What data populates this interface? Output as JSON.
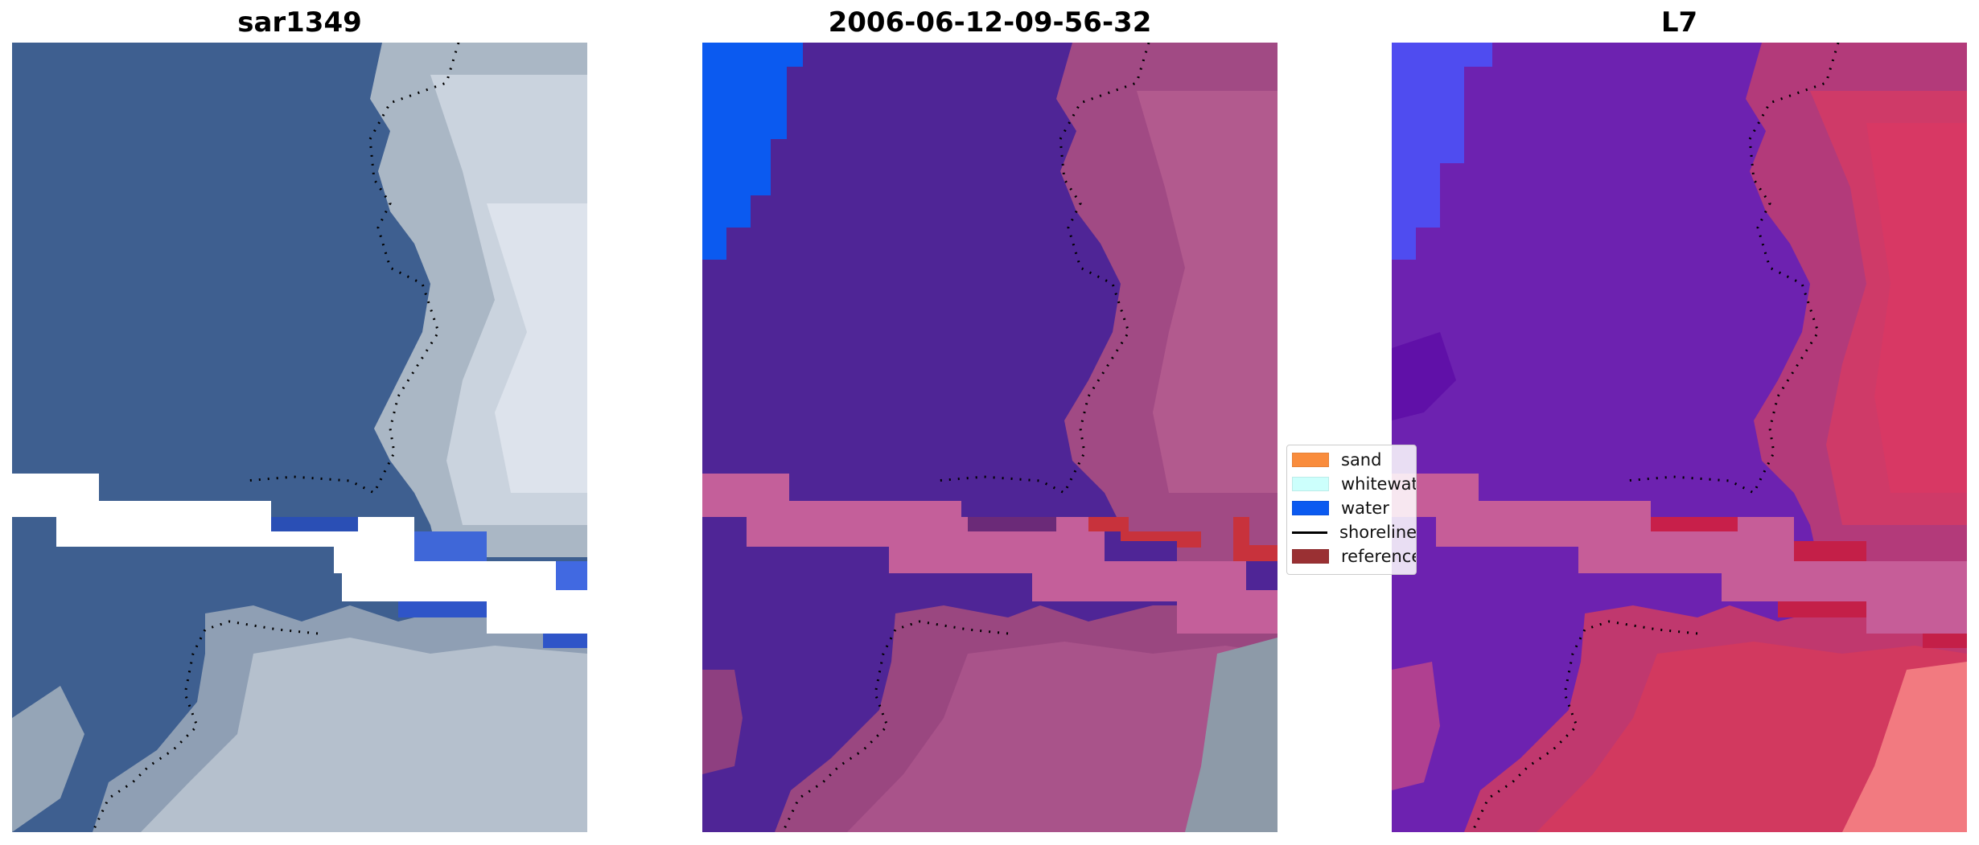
{
  "panels": [
    {
      "title": "sar1349"
    },
    {
      "title": "2006-06-12-09-56-32"
    },
    {
      "title": "L7"
    }
  ],
  "legend": {
    "items": [
      {
        "label": "sand",
        "kind": "patch",
        "color": "#f98c3c"
      },
      {
        "label": "whitewater",
        "kind": "patch",
        "color": "#ccfffc"
      },
      {
        "label": "water",
        "kind": "patch",
        "color": "#0b5af0"
      },
      {
        "label": "shoreline",
        "kind": "line",
        "color": "#000000"
      },
      {
        "label": "reference",
        "kind": "patch",
        "color": "#9a3033"
      }
    ]
  },
  "colors": {
    "sea": "#3e5f90",
    "surf": "#b9c4d0",
    "nodata": "#ffffff",
    "class_water_dark": "#4f2596",
    "class_water_bright": "#0b5af0",
    "class_land": "#a34c82",
    "class_stripe": "#c45f9a",
    "class_reference": "#c8323c",
    "l7_water": "#6d22b0",
    "l7_land": "#cf3a68",
    "l7_stripe": "#c65d98"
  }
}
